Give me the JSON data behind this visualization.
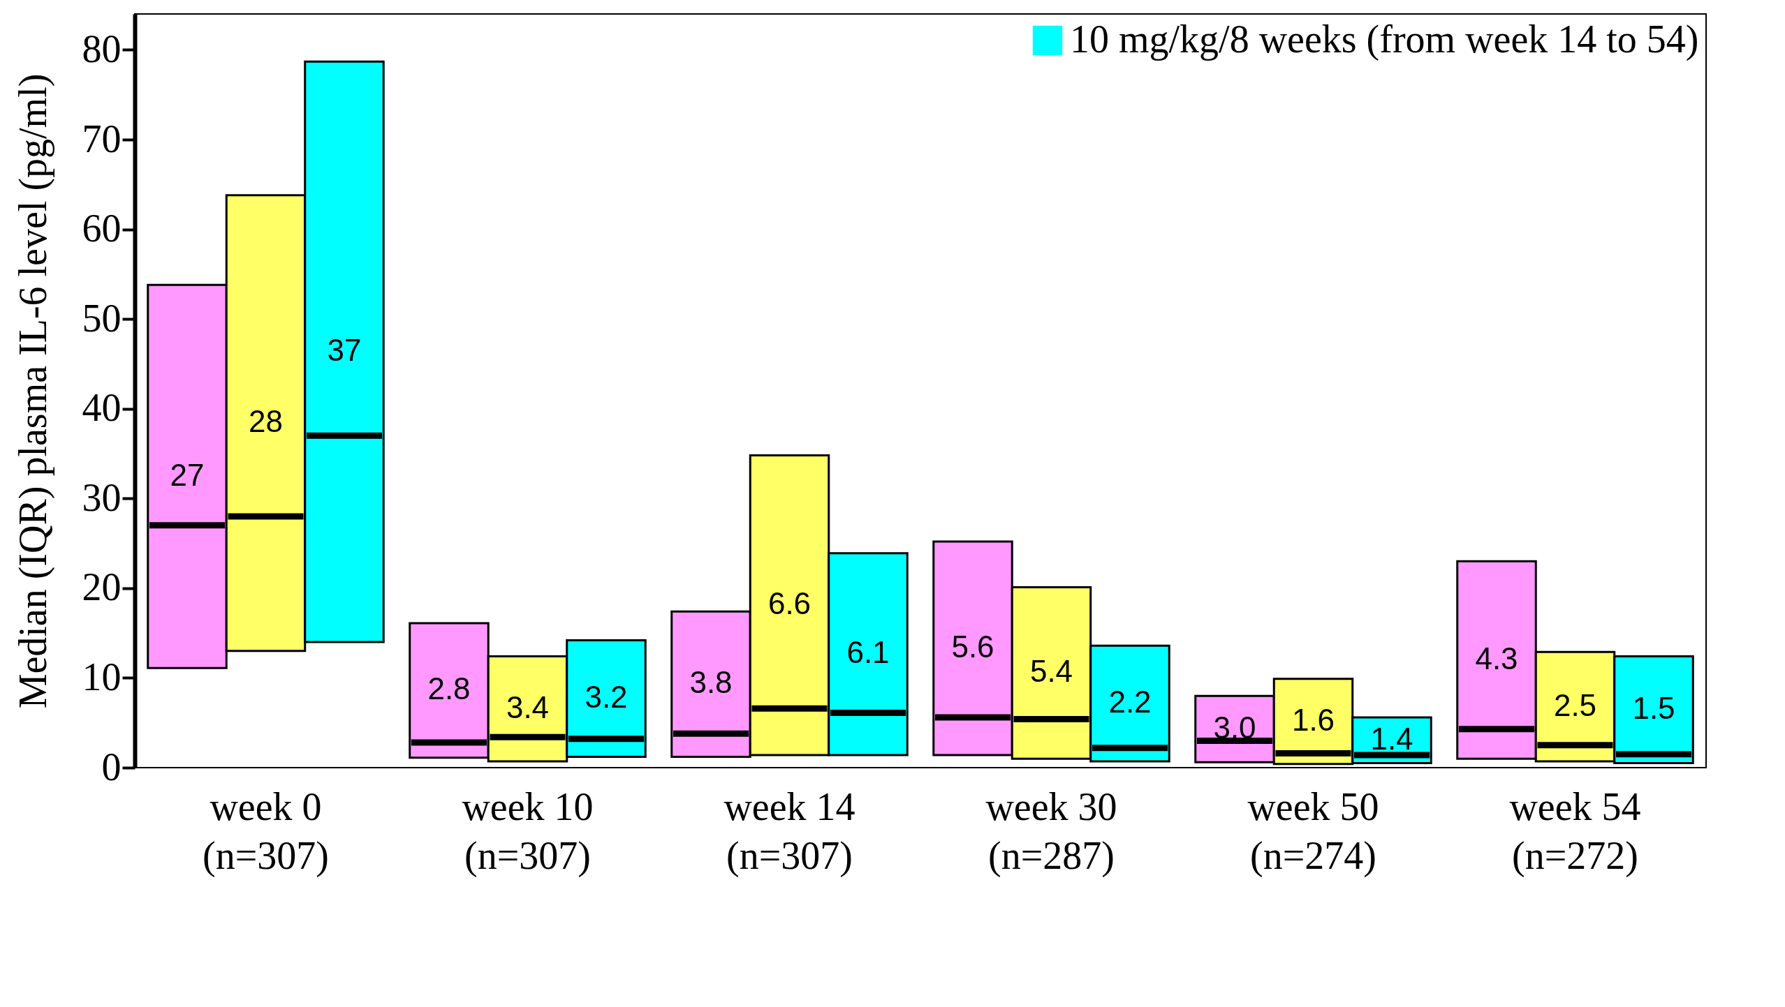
{
  "chart_data": {
    "type": "box",
    "ylabel": "Median (IQR) plasma IL-6 level (pg/ml)",
    "categories": [
      "week 0\n(n=307)",
      "week 10\n(n=307)",
      "week 14\n(n=307)",
      "week 30\n(n=287)",
      "week 50\n(n=274)",
      "week 54\n(n=272)"
    ],
    "ylim": [
      0,
      84
    ],
    "yticks": [
      0,
      10,
      20,
      30,
      40,
      50,
      60,
      70,
      80
    ],
    "grid": false,
    "legend": "top right",
    "series": [
      {
        "color": "#ff99ff",
        "value_labels": [
          "27",
          "2.8",
          "3.8",
          "5.6",
          "3.0",
          "4.3"
        ],
        "boxes": [
          {
            "low": 11.1,
            "q1": 11.1,
            "median": 27,
            "q3": 53.8,
            "high": 53.8
          },
          {
            "low": 1.1,
            "q1": 1.1,
            "median": 2.8,
            "q3": 16.1,
            "high": 16.1
          },
          {
            "low": 1.2,
            "q1": 1.2,
            "median": 3.8,
            "q3": 17.4,
            "high": 17.4
          },
          {
            "low": 1.4,
            "q1": 1.4,
            "median": 5.6,
            "q3": 25.2,
            "high": 25.2
          },
          {
            "low": 0.6,
            "q1": 0.6,
            "median": 3.0,
            "q3": 8.0,
            "high": 8.0
          },
          {
            "low": 1.0,
            "q1": 1.0,
            "median": 4.3,
            "q3": 23.0,
            "high": 23.0
          }
        ]
      },
      {
        "color": "#ffff66",
        "value_labels": [
          "28",
          "3.4",
          "6.6",
          "5.4",
          "1.6",
          "2.5"
        ],
        "boxes": [
          {
            "low": 13.0,
            "q1": 13.0,
            "median": 28,
            "q3": 63.8,
            "high": 63.8
          },
          {
            "low": 0.7,
            "q1": 0.7,
            "median": 3.4,
            "q3": 12.4,
            "high": 12.4
          },
          {
            "low": 1.4,
            "q1": 1.4,
            "median": 6.6,
            "q3": 34.8,
            "high": 34.8
          },
          {
            "low": 1.0,
            "q1": 1.0,
            "median": 5.4,
            "q3": 20.1,
            "high": 20.1
          },
          {
            "low": 0.4,
            "q1": 0.4,
            "median": 1.6,
            "q3": 9.9,
            "high": 9.9
          },
          {
            "low": 0.7,
            "q1": 0.7,
            "median": 2.5,
            "q3": 12.9,
            "high": 12.9
          }
        ]
      },
      {
        "name": "10 mg/kg/8 weeks (from week 14 to 54)",
        "color": "#00ffff",
        "value_labels": [
          "37",
          "3.2",
          "6.1",
          "2.2",
          "1.4",
          "1.5"
        ],
        "boxes": [
          {
            "low": 14.0,
            "q1": 14.0,
            "median": 37,
            "q3": 78.7,
            "high": 78.7
          },
          {
            "low": 1.2,
            "q1": 1.2,
            "median": 3.2,
            "q3": 14.2,
            "high": 14.2
          },
          {
            "low": 1.4,
            "q1": 1.4,
            "median": 6.1,
            "q3": 23.9,
            "high": 23.9
          },
          {
            "low": 0.7,
            "q1": 0.7,
            "median": 2.2,
            "q3": 13.6,
            "high": 13.6
          },
          {
            "low": 0.5,
            "q1": 0.5,
            "median": 1.4,
            "q3": 5.6,
            "high": 5.6
          },
          {
            "low": 0.5,
            "q1": 0.5,
            "median": 1.5,
            "q3": 12.4,
            "high": 12.4
          }
        ]
      }
    ]
  }
}
